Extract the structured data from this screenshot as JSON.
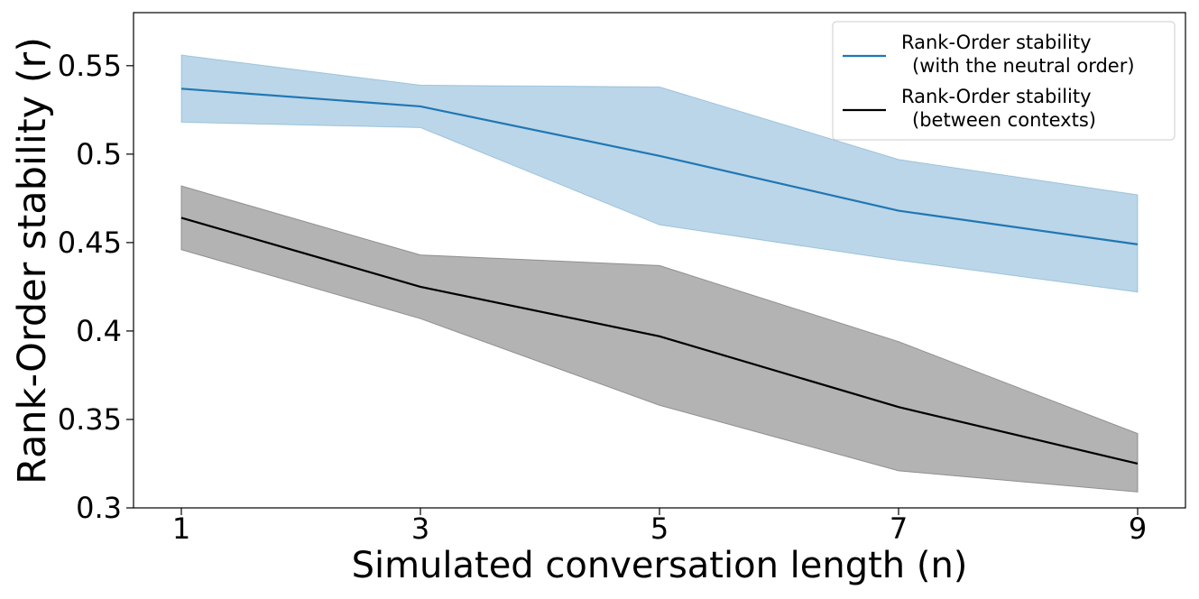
{
  "chart_data": {
    "type": "line",
    "title": "",
    "xlabel": "Simulated conversation length (n)",
    "ylabel": "Rank-Order stability (r)",
    "x": [
      1,
      3,
      5,
      7,
      9
    ],
    "xlim": [
      0.6,
      9.4
    ],
    "ylim": [
      0.3,
      0.58
    ],
    "x_ticks": [
      1,
      3,
      5,
      7,
      9
    ],
    "x_tick_labels": [
      "1",
      "3",
      "5",
      "7",
      "9"
    ],
    "y_ticks": [
      0.3,
      0.35,
      0.4,
      0.45,
      0.5,
      0.55
    ],
    "y_tick_labels": [
      "0.3",
      "0.35",
      "0.4",
      "0.45",
      "0.5",
      "0.55"
    ],
    "grid": false,
    "legend_position": "top-right",
    "series": [
      {
        "name": "Rank-Order stability\n  (with the neutral order)",
        "legend_line1": "Rank-Order stability",
        "legend_line2": "(with the neutral order)",
        "color": "#1f77b4",
        "band_color": "#1f77b4",
        "values": [
          0.537,
          0.527,
          0.499,
          0.468,
          0.449
        ],
        "lower": [
          0.518,
          0.515,
          0.46,
          0.44,
          0.422
        ],
        "upper": [
          0.556,
          0.539,
          0.538,
          0.497,
          0.477
        ]
      },
      {
        "name": "Rank-Order stability\n  (between contexts)",
        "legend_line1": "Rank-Order stability",
        "legend_line2": "(between contexts)",
        "color": "#000000",
        "band_color": "#808080",
        "values": [
          0.464,
          0.425,
          0.397,
          0.357,
          0.325
        ],
        "lower": [
          0.446,
          0.407,
          0.358,
          0.321,
          0.309
        ],
        "upper": [
          0.482,
          0.443,
          0.437,
          0.394,
          0.342
        ]
      }
    ]
  }
}
